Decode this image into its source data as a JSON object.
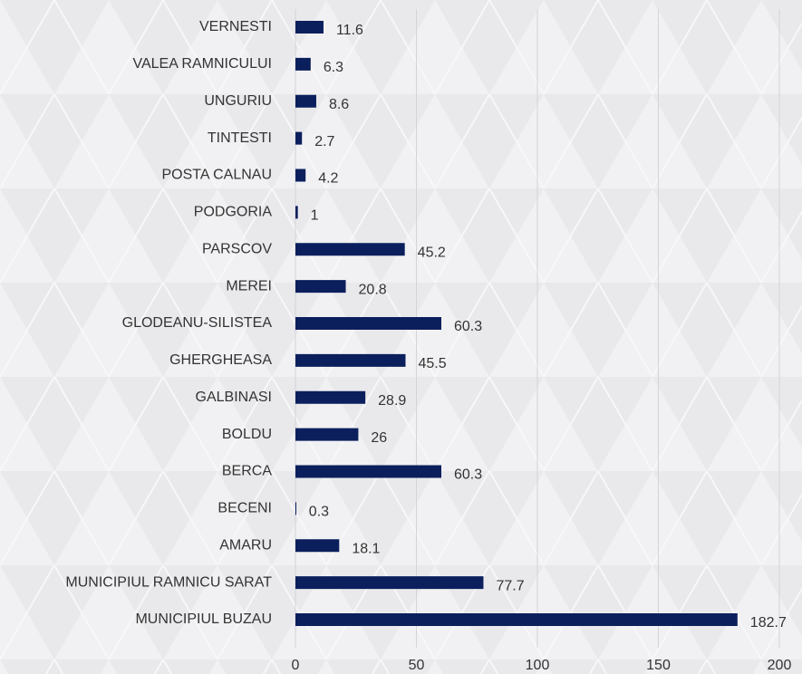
{
  "chart_data": {
    "type": "bar",
    "orientation": "horizontal",
    "categories": [
      "VERNESTI",
      "VALEA RAMNICULUI",
      "UNGURIU",
      "TINTESTI",
      "POSTA CALNAU",
      "PODGORIA",
      "PARSCOV",
      "MEREI",
      "GLODEANU-SILISTEA",
      "GHERGHEASA",
      "GALBINASI",
      "BOLDU",
      "BERCA",
      "BECENI",
      "AMARU",
      "MUNICIPIUL RAMNICU SARAT",
      "MUNICIPIUL BUZAU"
    ],
    "values": [
      11.6,
      6.3,
      8.6,
      2.7,
      4.2,
      1,
      45.2,
      20.8,
      60.3,
      45.5,
      28.9,
      26,
      60.3,
      0.3,
      18.1,
      77.7,
      182.7
    ],
    "color": "#0b1f5c",
    "xlim": [
      0,
      200
    ],
    "xticks": [
      0,
      50,
      100,
      150,
      200
    ],
    "grid": true
  }
}
